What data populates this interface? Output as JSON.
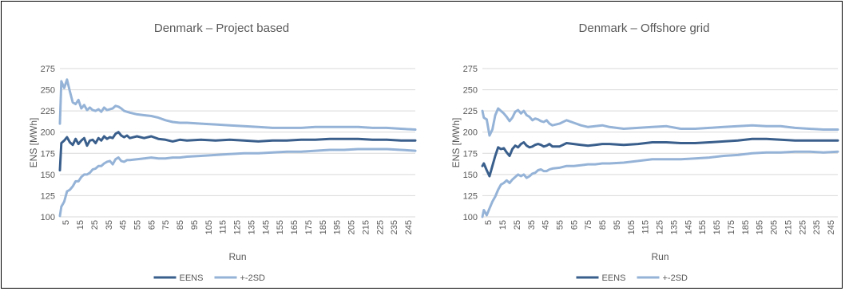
{
  "colors": {
    "eens": "#3A5F8C",
    "sd": "#95B3D7",
    "grid": "#D9D9D9",
    "text": "#595959"
  },
  "chart_data": [
    {
      "type": "line",
      "title": "Denmark – Project based",
      "xlabel": "Run",
      "ylabel": "ENS [MWh]",
      "ylim": [
        100,
        275
      ],
      "yticks": [
        "100",
        "125",
        "150",
        "175",
        "200",
        "225",
        "250",
        "275"
      ],
      "xlim": [
        1,
        250
      ],
      "xticks": [
        "5",
        "15",
        "25",
        "35",
        "45",
        "55",
        "65",
        "75",
        "85",
        "95",
        "105",
        "115",
        "125",
        "135",
        "145",
        "155",
        "165",
        "175",
        "185",
        "195",
        "205",
        "215",
        "225",
        "235",
        "245"
      ],
      "grid": "horizontal",
      "legend": "bottom",
      "series": [
        {
          "name": "EENS",
          "role": "mean",
          "x": [
            1,
            2,
            4,
            6,
            8,
            10,
            12,
            14,
            16,
            18,
            20,
            22,
            24,
            26,
            28,
            30,
            32,
            34,
            36,
            38,
            40,
            42,
            44,
            46,
            48,
            50,
            55,
            60,
            65,
            70,
            75,
            80,
            85,
            90,
            100,
            110,
            120,
            130,
            140,
            150,
            160,
            170,
            180,
            190,
            200,
            210,
            220,
            230,
            240,
            250
          ],
          "y": [
            155,
            187,
            190,
            194,
            188,
            185,
            192,
            186,
            190,
            193,
            184,
            190,
            191,
            187,
            193,
            190,
            195,
            192,
            194,
            193,
            198,
            200,
            196,
            194,
            196,
            193,
            195,
            193,
            195,
            192,
            191,
            189,
            191,
            190,
            191,
            190,
            191,
            190,
            189,
            190,
            190,
            191,
            191,
            192,
            192,
            192,
            191,
            191,
            190,
            190
          ]
        },
        {
          "name": "+-2SD",
          "role": "upper",
          "x": [
            1,
            2,
            4,
            6,
            8,
            10,
            12,
            14,
            16,
            18,
            20,
            22,
            24,
            26,
            28,
            30,
            32,
            34,
            36,
            38,
            40,
            42,
            44,
            46,
            48,
            50,
            55,
            60,
            65,
            70,
            75,
            80,
            85,
            90,
            100,
            110,
            120,
            130,
            140,
            150,
            160,
            170,
            180,
            190,
            200,
            210,
            220,
            230,
            240,
            250
          ],
          "y": [
            210,
            260,
            252,
            262,
            248,
            235,
            233,
            238,
            228,
            232,
            226,
            229,
            226,
            225,
            227,
            224,
            229,
            226,
            227,
            228,
            231,
            230,
            228,
            225,
            224,
            223,
            221,
            220,
            219,
            217,
            214,
            212,
            211,
            211,
            210,
            209,
            208,
            207,
            206,
            205,
            205,
            205,
            206,
            206,
            206,
            206,
            205,
            205,
            204,
            203
          ]
        },
        {
          "name": "+-2SD",
          "role": "lower",
          "x": [
            1,
            2,
            4,
            6,
            8,
            10,
            12,
            14,
            16,
            18,
            20,
            22,
            24,
            26,
            28,
            30,
            32,
            34,
            36,
            38,
            40,
            42,
            44,
            46,
            48,
            50,
            55,
            60,
            65,
            70,
            75,
            80,
            85,
            90,
            100,
            110,
            120,
            130,
            140,
            150,
            160,
            170,
            180,
            190,
            200,
            210,
            220,
            230,
            240,
            250
          ],
          "y": [
            101,
            112,
            118,
            130,
            132,
            136,
            142,
            142,
            147,
            150,
            150,
            152,
            156,
            157,
            160,
            160,
            163,
            165,
            166,
            162,
            168,
            170,
            166,
            165,
            167,
            167,
            168,
            169,
            170,
            169,
            169,
            170,
            170,
            171,
            172,
            173,
            174,
            175,
            175,
            176,
            177,
            177,
            178,
            179,
            179,
            180,
            180,
            180,
            179,
            178
          ]
        }
      ]
    },
    {
      "type": "line",
      "title": "Denmark – Offshore grid",
      "xlabel": "Run",
      "ylabel": "ENS [MWh]",
      "ylim": [
        100,
        275
      ],
      "yticks": [
        "100",
        "125",
        "150",
        "175",
        "200",
        "225",
        "250",
        "275"
      ],
      "xlim": [
        1,
        250
      ],
      "xticks": [
        "5",
        "15",
        "25",
        "35",
        "45",
        "55",
        "65",
        "75",
        "85",
        "95",
        "105",
        "115",
        "125",
        "135",
        "145",
        "155",
        "165",
        "175",
        "185",
        "195",
        "205",
        "215",
        "225",
        "235",
        "245"
      ],
      "grid": "horizontal",
      "legend": "bottom",
      "series": [
        {
          "name": "EENS",
          "role": "mean",
          "x": [
            1,
            2,
            4,
            6,
            8,
            10,
            12,
            14,
            16,
            18,
            20,
            22,
            24,
            26,
            28,
            30,
            32,
            34,
            36,
            38,
            40,
            42,
            44,
            46,
            48,
            50,
            55,
            60,
            65,
            70,
            75,
            80,
            85,
            90,
            100,
            110,
            120,
            130,
            140,
            150,
            160,
            170,
            180,
            190,
            200,
            210,
            220,
            230,
            240,
            250
          ],
          "y": [
            160,
            163,
            155,
            148,
            160,
            172,
            182,
            180,
            181,
            176,
            172,
            180,
            184,
            182,
            186,
            188,
            184,
            182,
            183,
            185,
            186,
            185,
            183,
            184,
            186,
            183,
            183,
            187,
            186,
            185,
            184,
            185,
            186,
            186,
            185,
            186,
            188,
            188,
            187,
            187,
            188,
            189,
            190,
            192,
            192,
            191,
            190,
            190,
            190,
            190
          ]
        },
        {
          "name": "+-2SD",
          "role": "upper",
          "x": [
            1,
            2,
            4,
            6,
            8,
            10,
            12,
            14,
            16,
            18,
            20,
            22,
            24,
            26,
            28,
            30,
            32,
            34,
            36,
            38,
            40,
            42,
            44,
            46,
            48,
            50,
            55,
            60,
            65,
            70,
            75,
            80,
            85,
            90,
            100,
            110,
            120,
            130,
            140,
            150,
            160,
            170,
            180,
            190,
            200,
            210,
            220,
            230,
            240,
            250
          ],
          "y": [
            225,
            217,
            215,
            196,
            203,
            220,
            228,
            225,
            222,
            218,
            213,
            217,
            224,
            226,
            222,
            225,
            220,
            218,
            214,
            216,
            215,
            213,
            212,
            214,
            210,
            208,
            210,
            214,
            211,
            208,
            206,
            207,
            208,
            206,
            204,
            205,
            206,
            207,
            204,
            204,
            205,
            206,
            207,
            208,
            207,
            207,
            205,
            204,
            203,
            203
          ]
        },
        {
          "name": "+-2SD",
          "role": "lower",
          "x": [
            1,
            2,
            4,
            6,
            8,
            10,
            12,
            14,
            16,
            18,
            20,
            22,
            24,
            26,
            28,
            30,
            32,
            34,
            36,
            38,
            40,
            42,
            44,
            46,
            48,
            50,
            55,
            60,
            65,
            70,
            75,
            80,
            85,
            90,
            100,
            110,
            120,
            130,
            140,
            150,
            160,
            170,
            180,
            190,
            200,
            210,
            220,
            230,
            240,
            250
          ],
          "y": [
            100,
            108,
            102,
            110,
            118,
            124,
            132,
            138,
            140,
            143,
            140,
            144,
            147,
            150,
            148,
            150,
            146,
            148,
            151,
            152,
            155,
            156,
            154,
            154,
            156,
            157,
            158,
            160,
            160,
            161,
            162,
            162,
            163,
            163,
            164,
            166,
            168,
            168,
            168,
            169,
            170,
            172,
            173,
            175,
            176,
            176,
            177,
            177,
            176,
            177
          ]
        }
      ]
    }
  ]
}
